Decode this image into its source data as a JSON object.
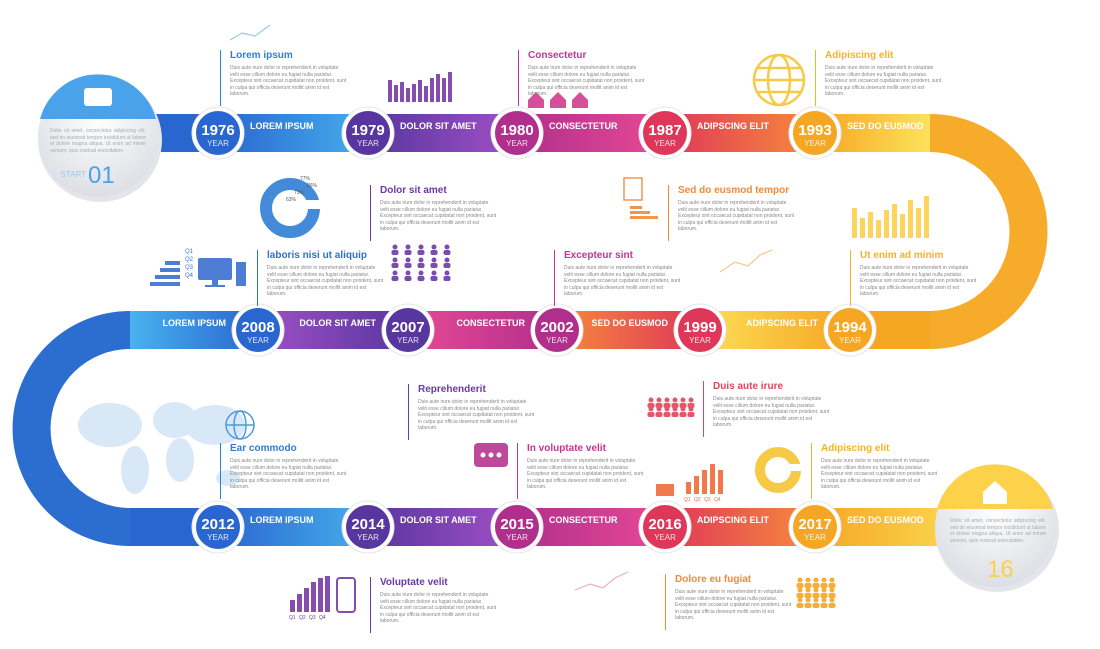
{
  "start": {
    "label": "START",
    "number": "01",
    "text": "Dolor sit amet, consectetur adipiscing elit, sed do eiusmod tempor incididunt ut labore et dolore magna aliqua. Ut enim ad minim veniam, quis nostrud exercitation"
  },
  "end": {
    "number": "16",
    "text": "Dolor sit amet, consectetur adipiscing elit, sed do eiusmod tempor incididunt ut labore et dolore magna aliqua. Ut enim ad minim veniam, quis nostrud exercitation"
  },
  "year_word": "YEAR",
  "rows": [
    [
      {
        "year": "1976",
        "label": "LOREM IPSUM"
      },
      {
        "year": "1979",
        "label": "DOLOR SIT AMET"
      },
      {
        "year": "1980",
        "label": "CONSECTETUR"
      },
      {
        "year": "1987",
        "label": "ADIPSCING ELIT"
      },
      {
        "year": "1993",
        "label": "SED DO EUSMOD"
      }
    ],
    [
      {
        "year": "1994",
        "label": "ADIPSCING ELIT"
      },
      {
        "year": "1999",
        "label": "SED DO EUSMOD"
      },
      {
        "year": "2002",
        "label": "CONSECTETUR"
      },
      {
        "year": "2007",
        "label": "DOLOR SIT AMET"
      },
      {
        "year": "2008",
        "label": "LOREM IPSUM"
      }
    ],
    [
      {
        "year": "2012",
        "label": "LOREM IPSUM"
      },
      {
        "year": "2014",
        "label": "DOLOR SIT AMET"
      },
      {
        "year": "2015",
        "label": "CONSECTETUR"
      },
      {
        "year": "2016",
        "label": "ADIPSCING ELIT"
      },
      {
        "year": "2017",
        "label": "SED DO EUSMOD"
      }
    ]
  ],
  "notes": [
    {
      "title": "Lorem ipsum",
      "body": "Duis aute irure dolor in reprehenderit in voluptate velit esse cillum dolore eu fugiat nulla pariatur. Excepteur sint occaecat cupidatat non proident, sunt in culpa qui officia deserunt mollit anim id est laborum."
    },
    {
      "title": "Consectetur",
      "body": "Duis aute irure dolor in reprehenderit in voluptate velit esse cillum dolore eu fugiat nulla pariatur. Excepteur sint occaecat cupidatat non proident, sunt in culpa qui officia deserunt mollit anim id est laborum."
    },
    {
      "title": "Adipiscing elit",
      "body": "Duis aute irure dolor in reprehenderit in voluptate velit esse cillum dolore eu fugiat nulla pariatur. Excepteur sint occaecat cupidatat non proident, sunt in culpa qui officia deserunt mollit anim id est laborum."
    },
    {
      "title": "Dolor sit amet",
      "body": "Duis aute irure dolor in reprehenderit in voluptate velit esse cillum dolore eu fugiat nulla pariatur. Excepteur sint occaecat cupidatat non proident, sunt in culpa qui officia deserunt mollit anim id est laborum."
    },
    {
      "title": "Sed do eusmod tempor",
      "body": "Duis aute irure dolor in reprehenderit in voluptate velit esse cillum dolore eu fugiat nulla pariatur. Excepteur sint occaecat cupidatat non proident, sunt in culpa qui officia deserunt mollit anim id est laborum."
    },
    {
      "title": "laboris nisi ut aliquip",
      "body": "Duis aute irure dolor in reprehenderit in voluptate velit esse cillum dolore eu fugiat nulla pariatur. Excepteur sint occaecat cupidatat non proident, sunt in culpa qui officia deserunt mollit anim id est laborum."
    },
    {
      "title": "Excepteur sint",
      "body": "Duis aute irure dolor in reprehenderit in voluptate velit esse cillum dolore eu fugiat nulla pariatur. Excepteur sint occaecat cupidatat non proident, sunt in culpa qui officia deserunt mollit anim id est laborum."
    },
    {
      "title": "Ut enim ad minim",
      "body": "Duis aute irure dolor in reprehenderit in voluptate velit esse cillum dolore eu fugiat nulla pariatur. Excepteur sint occaecat cupidatat non proident, sunt in culpa qui officia deserunt mollit anim id est laborum."
    },
    {
      "title": "Reprehenderit",
      "body": "Duis aute irure dolor in reprehenderit in voluptate velit esse cillum dolore eu fugiat nulla pariatur. Excepteur sint occaecat cupidatat non proident, sunt in culpa qui officia deserunt mollit anim id est laborum."
    },
    {
      "title": "Duis aute irure",
      "body": "Duis aute irure dolor in reprehenderit in voluptate velit esse cillum dolore eu fugiat nulla pariatur. Excepteur sint occaecat cupidatat non proident, sunt in culpa qui officia deserunt mollit anim id est laborum."
    },
    {
      "title": "Ear commodo",
      "body": "Duis aute irure dolor in reprehenderit in voluptate velit esse cillum dolore eu fugiat nulla pariatur. Excepteur sint occaecat cupidatat non proident, sunt in culpa qui officia deserunt mollit anim id est laborum."
    },
    {
      "title": "In voluptate velit",
      "body": "Duis aute irure dolor in reprehenderit in voluptate velit esse cillum dolore eu fugiat nulla pariatur. Excepteur sint occaecat cupidatat non proident, sunt in culpa qui officia deserunt mollit anim id est laborum."
    },
    {
      "title": "Adipiscing elit",
      "body": "Duis aute irure dolor in reprehenderit in voluptate velit esse cillum dolore eu fugiat nulla pariatur. Excepteur sint occaecat cupidatat non proident, sunt in culpa qui officia deserunt mollit anim id est laborum."
    },
    {
      "title": "Voluptate velit",
      "body": "Duis aute irure dolor in reprehenderit in voluptate velit esse cillum dolore eu fugiat nulla pariatur. Excepteur sint occaecat cupidatat non proident, sunt in culpa qui officia deserunt mollit anim id est laborum."
    },
    {
      "title": "Dolore eu fugiat",
      "body": "Duis aute irure dolor in reprehenderit in voluptate velit esse cillum dolore eu fugiat nulla pariatur. Excepteur sint occaecat cupidatat non proident, sunt in culpa qui officia deserunt mollit anim id est laborum."
    }
  ],
  "quarters": [
    "Q1",
    "Q2",
    "Q3",
    "Q4"
  ],
  "percentages": [
    "77%",
    "86%",
    "73%",
    "63%"
  ]
}
